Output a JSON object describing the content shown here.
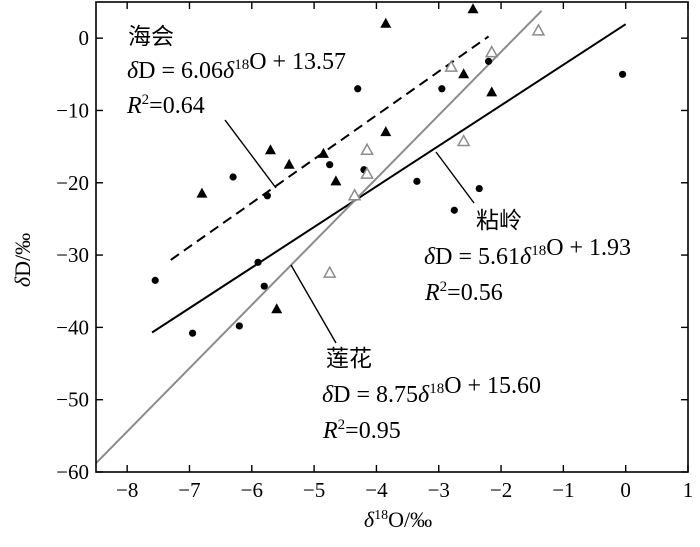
{
  "chart_data": {
    "type": "scatter",
    "xlabel": "δ18O/‰",
    "ylabel": "δD/‰",
    "xlim": [
      -8.5,
      1
    ],
    "ylim": [
      -60,
      5
    ],
    "x_ticks": [
      -8,
      -7,
      -6,
      -5,
      -4,
      -3,
      -2,
      -1,
      0,
      1
    ],
    "y_ticks": [
      0,
      -10,
      -20,
      -30,
      -40,
      -50,
      -60
    ],
    "x_tick_labels": [
      "−8",
      "−7",
      "−6",
      "−5",
      "−4",
      "−3",
      "−2",
      "−1",
      "0",
      "1"
    ],
    "y_tick_labels": [
      "0",
      "−10",
      "−20",
      "−30",
      "−40",
      "−50",
      "−60"
    ],
    "grid": false,
    "series": [
      {
        "marker": "triangle-filled",
        "color": "#000000",
        "points": [
          [
            -6.8,
            -21.5
          ],
          [
            -5.7,
            -15.5
          ],
          [
            -5.4,
            -17.5
          ],
          [
            -4.85,
            -16
          ],
          [
            -4.65,
            -19.8
          ],
          [
            -3.85,
            2
          ],
          [
            -3.85,
            -13
          ],
          [
            -2.45,
            4
          ],
          [
            -2.6,
            -5
          ],
          [
            -2.15,
            -7.5
          ],
          [
            -5.6,
            -37.5
          ]
        ],
        "fit": {
          "slope": 6.06,
          "intercept": 13.57,
          "x_range": [
            -7.3,
            -2.2
          ],
          "style": "dashed"
        }
      },
      {
        "marker": "circle-filled",
        "color": "#000000",
        "points": [
          [
            -7.55,
            -33.5
          ],
          [
            -6.95,
            -40.8
          ],
          [
            -6.3,
            -19.2
          ],
          [
            -6.2,
            -39.8
          ],
          [
            -5.9,
            -31
          ],
          [
            -5.8,
            -34.3
          ],
          [
            -5.75,
            -21.8
          ],
          [
            -4.75,
            -17.5
          ],
          [
            -4.3,
            -7
          ],
          [
            -4.2,
            -18.2
          ],
          [
            -3.35,
            -19.8
          ],
          [
            -2.95,
            -7
          ],
          [
            -2.75,
            -23.8
          ],
          [
            -2.35,
            -20.8
          ],
          [
            -2.2,
            -3.2
          ],
          [
            -0.05,
            -5
          ]
        ],
        "fit": {
          "slope": 5.61,
          "intercept": 1.93,
          "x_range": [
            -7.6,
            0
          ],
          "style": "solid"
        }
      },
      {
        "marker": "triangle-open",
        "color": "#8c8c8c",
        "points": [
          [
            -1.4,
            1
          ],
          [
            -2.15,
            -2
          ],
          [
            -2.8,
            -4
          ],
          [
            -4.15,
            -15.5
          ],
          [
            -4.15,
            -18.8
          ],
          [
            -4.35,
            -21.8
          ],
          [
            -2.6,
            -14.3
          ],
          [
            -4.75,
            -32.5
          ]
        ],
        "fit": {
          "slope": 8.75,
          "intercept": 15.6,
          "x_range": [
            -8.5,
            -1.35
          ],
          "style": "solid-gray"
        }
      }
    ],
    "annotations": [
      {
        "name": "海会",
        "equation": "δD = 6.06δ18O + 13.57",
        "r2": "R2=0.64"
      },
      {
        "name": "粘岭",
        "equation": "δD = 5.61δ18O + 1.93",
        "r2": "R2=0.56"
      },
      {
        "name": "莲花",
        "equation": "δD = 8.75δ18O + 15.60",
        "r2": "R2=0.95"
      }
    ]
  }
}
